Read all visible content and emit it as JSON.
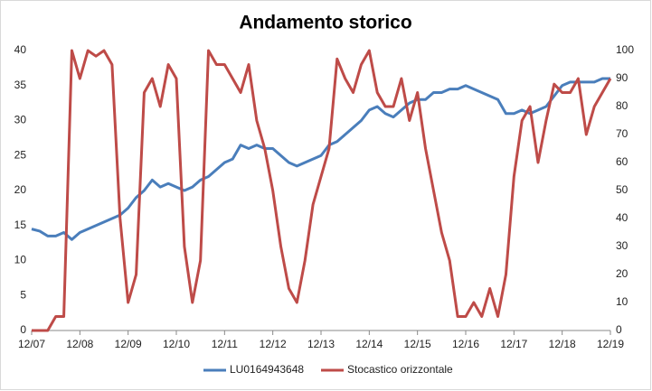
{
  "chart_data": {
    "type": "line",
    "title": "Andamento storico",
    "x": [
      "12/07",
      "02/08",
      "04/08",
      "06/08",
      "08/08",
      "10/08",
      "12/08",
      "02/09",
      "04/09",
      "06/09",
      "08/09",
      "10/09",
      "12/09",
      "02/10",
      "04/10",
      "06/10",
      "08/10",
      "10/10",
      "12/10",
      "02/11",
      "04/11",
      "06/11",
      "08/11",
      "10/11",
      "12/11",
      "02/12",
      "04/12",
      "06/12",
      "08/12",
      "10/12",
      "12/12",
      "02/13",
      "04/13",
      "06/13",
      "08/13",
      "10/13",
      "12/13",
      "02/14",
      "04/14",
      "06/14",
      "08/14",
      "10/14",
      "12/14",
      "02/15",
      "04/15",
      "06/15",
      "08/15",
      "10/15",
      "12/15",
      "02/16",
      "04/16",
      "06/16",
      "08/16",
      "10/16",
      "12/16",
      "02/17",
      "04/17",
      "06/17",
      "08/17",
      "10/17",
      "12/17",
      "02/18",
      "04/18",
      "06/18",
      "08/18",
      "10/18",
      "12/18",
      "02/19",
      "04/19",
      "06/19",
      "08/19",
      "10/19",
      "12/19"
    ],
    "series": [
      {
        "name": "LU0164943648",
        "color": "#4a7ebb",
        "values": [
          14.5,
          14.2,
          13.5,
          13.5,
          14,
          13,
          14,
          14.5,
          15,
          15.5,
          16,
          16.5,
          17.5,
          19,
          20,
          21.5,
          20.5,
          21,
          20.5,
          20,
          20.5,
          21.5,
          22,
          23,
          24,
          24.5,
          26.5,
          26,
          26.5,
          26,
          26,
          25,
          24,
          23.5,
          24,
          24.5,
          25,
          26.5,
          27,
          28,
          29,
          30,
          31.5,
          32,
          31,
          30.5,
          31.5,
          32.5,
          33,
          33,
          34,
          34,
          34.5,
          34.5,
          35,
          34.5,
          34,
          33.5,
          33,
          31,
          31,
          31.5,
          31,
          31.5,
          32,
          33.5,
          35,
          35.5,
          35.5,
          35.5,
          35.5,
          36,
          36
        ]
      },
      {
        "name": "Stocastico orizzontale",
        "color": "#be4b48",
        "axis": "y2",
        "values": [
          0,
          0,
          0,
          5,
          5,
          100,
          90,
          100,
          98,
          100,
          95,
          40,
          10,
          20,
          85,
          90,
          80,
          95,
          90,
          30,
          10,
          25,
          100,
          95,
          95,
          90,
          85,
          95,
          75,
          65,
          50,
          30,
          15,
          10,
          25,
          45,
          55,
          65,
          97,
          90,
          85,
          95,
          100,
          85,
          80,
          80,
          90,
          75,
          85,
          65,
          50,
          35,
          25,
          5,
          5,
          10,
          5,
          15,
          5,
          20,
          55,
          75,
          80,
          60,
          75,
          88,
          85,
          85,
          90,
          70,
          80,
          85,
          90
        ]
      }
    ],
    "xlim": [
      "12/07",
      "12/19"
    ],
    "xticks": [
      "12/07",
      "12/08",
      "12/09",
      "12/10",
      "12/11",
      "12/12",
      "12/13",
      "12/14",
      "12/15",
      "12/16",
      "12/17",
      "12/18",
      "12/19"
    ],
    "ylim": [
      0,
      40
    ],
    "yticks": [
      0,
      5,
      10,
      15,
      20,
      25,
      30,
      35,
      40
    ],
    "y2lim": [
      0,
      100
    ],
    "y2ticks": [
      0,
      10,
      20,
      30,
      40,
      50,
      60,
      70,
      80,
      90,
      100
    ],
    "grid": false,
    "legend": "bottom"
  }
}
